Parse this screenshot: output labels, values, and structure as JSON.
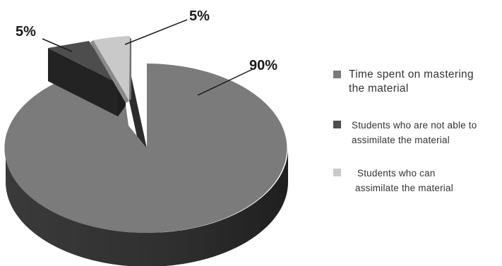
{
  "chart_data": {
    "type": "pie",
    "style": "3d-exploded",
    "slices": [
      {
        "label": "Time spent on mastering the material",
        "value": 90,
        "value_label": "90%",
        "color": "#7b7b7b",
        "side_color": "#343434"
      },
      {
        "label": "Students who are not able to assimilate the material",
        "value": 5,
        "value_label": "5%",
        "color": "#4d4d4d",
        "side_color": "#232323"
      },
      {
        "label": "Students who can assimilate the material",
        "value": 5,
        "value_label": "5%",
        "color": "#c9c9c9",
        "side_color": "#8a8a8a"
      }
    ],
    "legend": {
      "placement": "right",
      "items": [
        {
          "lines": [
            "Time spent on mastering",
            "the material"
          ],
          "color": "#7b7b7b"
        },
        {
          "lines": [
            "Students who are not able to",
            "assimilate the material"
          ],
          "color": "#4d4d4d"
        },
        {
          "lines": [
            "Students who can",
            "assimilate the material"
          ],
          "color": "#c9c9c9"
        }
      ]
    },
    "title": ""
  }
}
